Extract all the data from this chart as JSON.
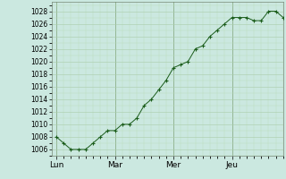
{
  "background_color": "#cbe8e0",
  "plot_bg_color": "#cbe8e0",
  "line_color": "#1a5c1a",
  "marker_color": "#1a5c1a",
  "grid_color_major": "#aaccaa",
  "grid_color_minor": "#bbddbb",
  "ylabel_fontsize": 5.5,
  "xlabel_fontsize": 6.5,
  "ylim": [
    1005.0,
    1029.5
  ],
  "yticks": [
    1006,
    1008,
    1010,
    1012,
    1014,
    1016,
    1018,
    1020,
    1022,
    1024,
    1026,
    1028
  ],
  "day_labels": [
    "Lun",
    "Mar",
    "Mer",
    "Jeu"
  ],
  "day_positions": [
    0,
    24,
    48,
    72
  ],
  "xlim": [
    -2,
    93
  ],
  "x": [
    0,
    3,
    6,
    9,
    12,
    15,
    18,
    21,
    24,
    27,
    30,
    33,
    36,
    39,
    42,
    45,
    48,
    51,
    54,
    57,
    60,
    63,
    66,
    69,
    72,
    75,
    78,
    81,
    84,
    87,
    90,
    93
  ],
  "y": [
    1008,
    1007,
    1006,
    1006,
    1006,
    1007,
    1008,
    1009,
    1009,
    1010,
    1010,
    1011,
    1013,
    1014,
    1015.5,
    1017,
    1019,
    1019.5,
    1020,
    1022,
    1022.5,
    1024,
    1025,
    1026,
    1027,
    1027,
    1027,
    1026.5,
    1026.5,
    1028,
    1028,
    1027
  ]
}
